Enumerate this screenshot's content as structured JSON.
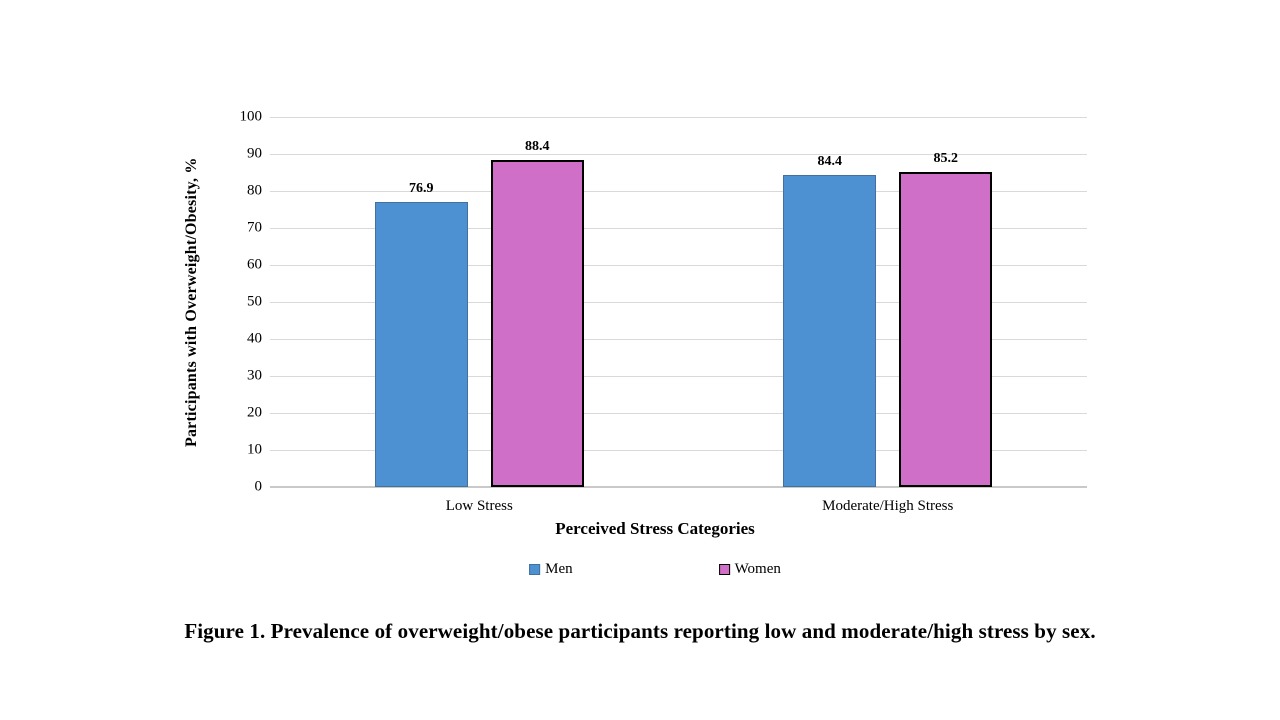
{
  "figure": {
    "caption": "Figure 1. Prevalence of overweight/obese participants reporting low and moderate/high stress by sex."
  },
  "chart_data": {
    "type": "bar",
    "title": "",
    "categories": [
      "Low Stress",
      "Moderate/High Stress"
    ],
    "series": [
      {
        "name": "Men",
        "values": [
          76.9,
          84.4
        ],
        "color": "#4e91d2",
        "border_color": "#41719c",
        "border_width": 1
      },
      {
        "name": "Women",
        "values": [
          88.4,
          85.2
        ],
        "color": "#d06fc8",
        "border_color": "#000000",
        "border_width": 2
      }
    ],
    "xlabel": "Perceived Stress Categories",
    "ylabel": "Participants with Overweight/Obesity, %",
    "ylim": [
      0,
      100
    ],
    "ytick_step": 10,
    "grid": true,
    "legend_position": "bottom",
    "data_labels": true,
    "gridline_color": "#d9d9d9"
  }
}
